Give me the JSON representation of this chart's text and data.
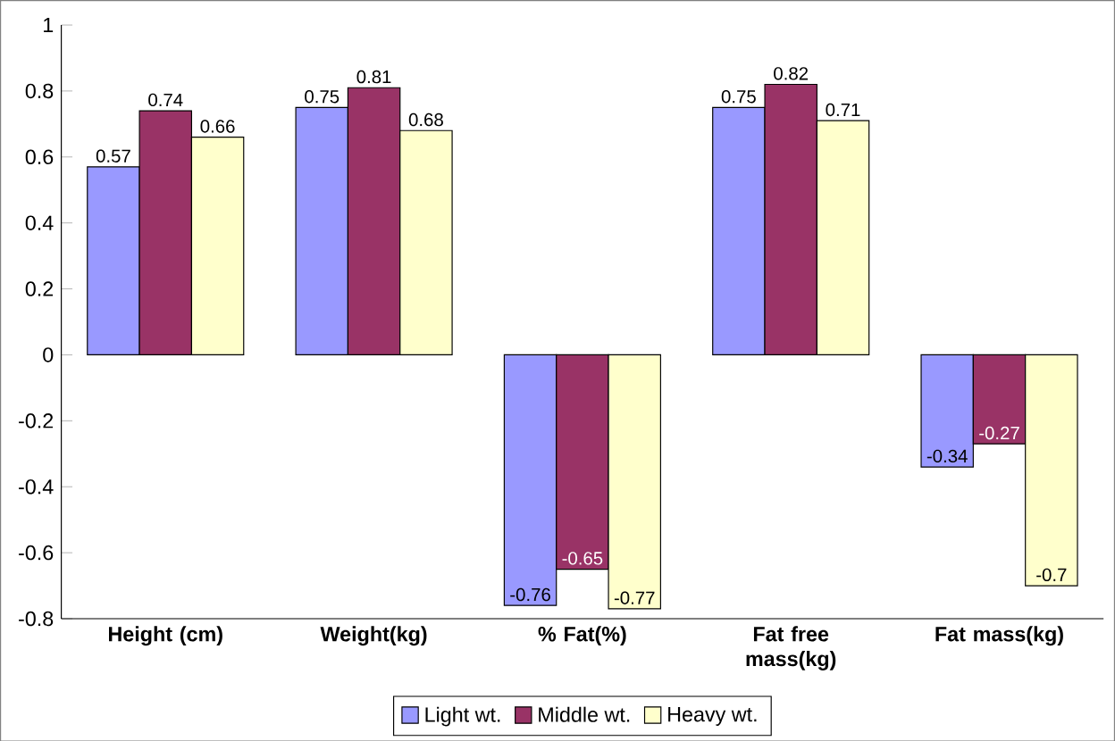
{
  "chart_data": {
    "type": "bar",
    "categories": [
      "Height (cm)",
      "Weight(kg)",
      "% Fat(%)",
      "Fat free mass(kg)",
      "Fat mass(kg)"
    ],
    "series": [
      {
        "name": "Light wt.",
        "color": "#9999ff",
        "values": [
          0.57,
          0.75,
          -0.76,
          0.75,
          -0.34
        ]
      },
      {
        "name": "Middle wt.",
        "color": "#993366",
        "values": [
          0.74,
          0.81,
          -0.65,
          0.82,
          -0.27
        ]
      },
      {
        "name": "Heavy wt.",
        "color": "#ffffcc",
        "values": [
          0.66,
          0.68,
          -0.77,
          0.71,
          -0.7
        ]
      }
    ],
    "ylim": [
      -0.8,
      1
    ],
    "yticks": [
      -0.8,
      -0.6,
      -0.4,
      -0.2,
      0,
      0.2,
      0.4,
      0.6,
      0.8,
      1
    ],
    "data_labels": true,
    "legend": "bottom"
  }
}
